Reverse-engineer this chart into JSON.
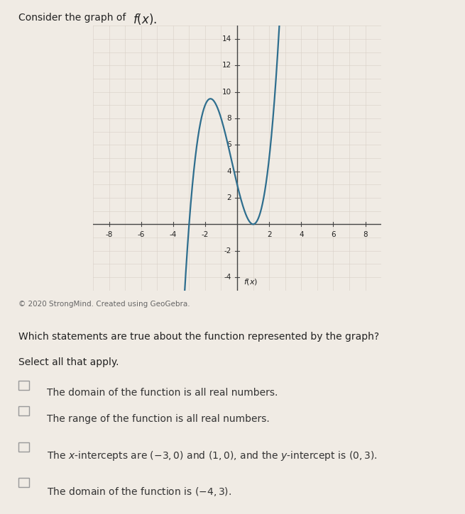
{
  "copyright_text": "© 2020 StrongMind. Created using GeoGebra.",
  "question_text": "Which statements are true about the function represented by the graph?",
  "select_text": "Select all that apply.",
  "graph_xlim": [
    -9,
    9
  ],
  "graph_ylim": [
    -5,
    15
  ],
  "graph_xticks": [
    -8,
    -6,
    -4,
    -2,
    2,
    4,
    6,
    8
  ],
  "graph_yticks": [
    -4,
    -2,
    2,
    4,
    6,
    8,
    10,
    12,
    14
  ],
  "curve_color": "#2e6e8e",
  "curve_linewidth": 1.6,
  "bg_color": "#f0ebe4",
  "grid_color_minor": "#d8cfc6",
  "grid_color_major": "#c8bfb6",
  "axis_color": "#444444",
  "text_color": "#222222",
  "option_text_color": "#333333",
  "checkbox_color": "#999999",
  "title_prefix": "Consider the graph of ",
  "title_math": "$f(x)$.",
  "option1": "The domain of the function is all real numbers.",
  "option2": "The range of the function is all real numbers.",
  "option3_pre": "The ",
  "option3_x": "$x$",
  "option3_mid": "-intercepts are ",
  "option3_pts": "$(-3, 0)$",
  "option3_and": " and ",
  "option3_pts2": "$(1, 0)$",
  "option3_post": ", and the ",
  "option3_y": "$y$",
  "option3_end": "-intercept is ",
  "option3_yval": "$(0, 3)$",
  "option3_dot": ".",
  "option4_pre": "The domain of the function is ",
  "option4_val": "$(-4, 3)$",
  "option4_dot": "."
}
